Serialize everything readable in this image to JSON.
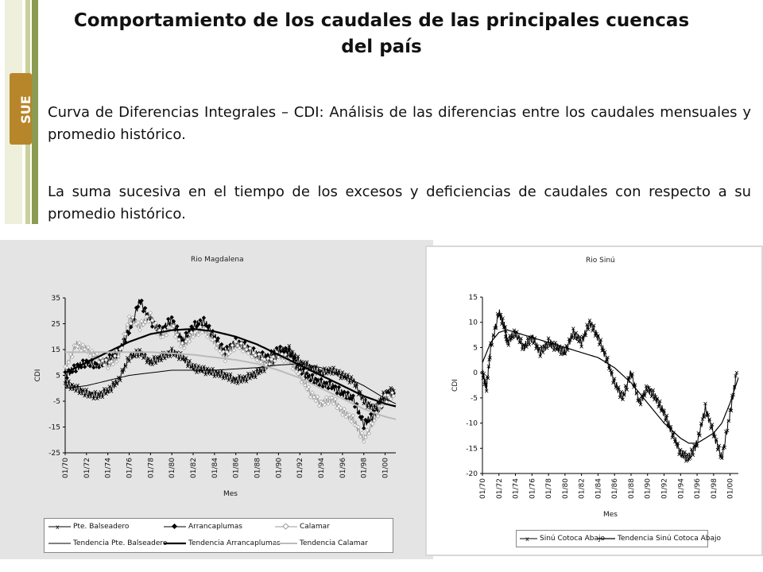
{
  "slide": {
    "title_line1": "Comportamiento de los caudales de las principales cuencas",
    "title_line2": "del país",
    "paragraph1": "Curva de Diferencias Integrales – CDI: Análisis de las diferencias entre los caudales mensuales y promedio histórico.",
    "paragraph2": "La suma sucesiva en el tiempo de los excesos y deficiencias de caudales con respecto a su promedio histórico.",
    "logo_text": "SUE",
    "logo_icon": "sue-logo-icon"
  },
  "chart_data": [
    {
      "type": "line",
      "title": "Rio Magdalena",
      "xlabel": "Mes",
      "ylabel": "CDI",
      "ylim": [
        -25,
        35
      ],
      "yticks": [
        "35",
        "25",
        "15",
        "5",
        "-5",
        "-15",
        "-25"
      ],
      "xlim": [
        1970,
        2001
      ],
      "xticks": [
        "01/70",
        "01/72",
        "01/74",
        "01/76",
        "01/78",
        "01/80",
        "01/82",
        "01/84",
        "01/86",
        "01/88",
        "01/90",
        "01/92",
        "01/94",
        "01/96",
        "01/98",
        "01/00"
      ],
      "grid": false,
      "legend_position": "bottom",
      "series": [
        {
          "name": "Pte. Balseadero",
          "color": "#000000",
          "marker": "x",
          "style": "solid",
          "width": 1,
          "x": [
            1970,
            1971,
            1972,
            1973,
            1974,
            1975,
            1976,
            1977,
            1978,
            1979,
            1980,
            1981,
            1982,
            1983,
            1984,
            1985,
            1986,
            1987,
            1988,
            1989,
            1990,
            1991,
            1992,
            1993,
            1994,
            1995,
            1996,
            1997,
            1998,
            1999,
            2000,
            2000.8
          ],
          "values": [
            2,
            0,
            -2,
            -3,
            -1,
            3,
            12,
            14,
            10,
            12,
            14,
            12,
            8,
            7,
            6,
            5,
            3,
            4,
            6,
            9,
            13,
            15,
            10,
            8,
            6,
            7,
            5,
            3,
            -5,
            -8,
            -2,
            -1
          ]
        },
        {
          "name": "Arrancaplumas",
          "color": "#000000",
          "marker": "diamond",
          "style": "solid",
          "width": 1,
          "x": [
            1970,
            1971,
            1972,
            1973,
            1974,
            1975,
            1976,
            1977,
            1978,
            1979,
            1980,
            1981,
            1982,
            1983,
            1984,
            1985,
            1986,
            1987,
            1988,
            1989,
            1990,
            1991,
            1992,
            1993,
            1994,
            1995,
            1996,
            1997,
            1998,
            1999,
            2000,
            2000.8
          ],
          "values": [
            5,
            8,
            10,
            9,
            11,
            14,
            22,
            34,
            26,
            22,
            27,
            18,
            24,
            26,
            20,
            14,
            18,
            16,
            13,
            12,
            15,
            14,
            7,
            4,
            2,
            1,
            -2,
            -4,
            -14,
            -10,
            -4,
            -2
          ]
        },
        {
          "name": "Calamar",
          "color": "#999999",
          "marker": "diamond-open",
          "style": "solid",
          "width": 1,
          "x": [
            1970,
            1971,
            1972,
            1973,
            1974,
            1975,
            1976,
            1977,
            1978,
            1979,
            1980,
            1981,
            1982,
            1983,
            1984,
            1985,
            1986,
            1987,
            1988,
            1989,
            1990,
            1991,
            1992,
            1993,
            1994,
            1995,
            1996,
            1997,
            1998,
            1999,
            2000,
            2000.8
          ],
          "values": [
            7,
            17,
            15,
            12,
            9,
            12,
            27,
            24,
            28,
            20,
            24,
            16,
            21,
            23,
            18,
            12,
            17,
            15,
            12,
            10,
            13,
            11,
            5,
            -2,
            -6,
            -4,
            -9,
            -12,
            -20,
            -12,
            -4,
            -3
          ]
        },
        {
          "name": "Tendencia Pte. Balseadero",
          "color": "#000000",
          "marker": "none",
          "style": "solid",
          "width": 1,
          "x": [
            1970,
            1972,
            1974,
            1976,
            1978,
            1980,
            1982,
            1984,
            1986,
            1988,
            1990,
            1992,
            1994,
            1996,
            1998,
            2000,
            2001
          ],
          "values": [
            0,
            1,
            3,
            5,
            6,
            7,
            7,
            7,
            7.5,
            8,
            9,
            9.5,
            8,
            5,
            1,
            -4,
            -6
          ]
        },
        {
          "name": "Tendencia Arrancaplumas",
          "color": "#000000",
          "marker": "none",
          "style": "solid",
          "width": 2.2,
          "x": [
            1970,
            1972,
            1974,
            1976,
            1978,
            1980,
            1982,
            1984,
            1986,
            1988,
            1990,
            1992,
            1994,
            1996,
            1998,
            2000,
            2001
          ],
          "values": [
            6,
            10,
            14,
            18,
            21,
            22.5,
            23,
            22,
            20,
            17,
            13,
            9,
            5,
            1,
            -3,
            -6,
            -7
          ]
        },
        {
          "name": "Tendencia Calamar",
          "color": "#bbbbbb",
          "marker": "none",
          "style": "solid",
          "width": 2,
          "x": [
            1970,
            1972,
            1974,
            1976,
            1978,
            1980,
            1982,
            1984,
            1986,
            1988,
            1990,
            1992,
            1994,
            1996,
            1998,
            2000,
            2001
          ],
          "values": [
            14,
            14,
            14,
            14,
            14,
            13.5,
            13,
            12,
            11,
            9.5,
            7,
            4,
            0,
            -4,
            -8,
            -11,
            -12
          ]
        }
      ]
    },
    {
      "type": "line",
      "title": "Rio Sinú",
      "xlabel": "Mes",
      "ylabel": "CDI",
      "ylim": [
        -20,
        15
      ],
      "yticks": [
        "15",
        "10",
        "5",
        "0",
        "-5",
        "-10",
        "-15",
        "-20"
      ],
      "xlim": [
        1970,
        2001
      ],
      "xticks": [
        "01/70",
        "01/72",
        "01/74",
        "01/76",
        "01/78",
        "01/80",
        "01/82",
        "01/84",
        "01/86",
        "01/88",
        "01/90",
        "01/92",
        "01/94",
        "01/96",
        "01/98",
        "01/00"
      ],
      "grid": false,
      "legend_position": "bottom",
      "series": [
        {
          "name": "Sinú Cotoca Abajo",
          "color": "#000000",
          "marker": "x",
          "style": "solid",
          "width": 1,
          "x": [
            1970,
            1970.5,
            1971,
            1972,
            1972.7,
            1973,
            1974,
            1975,
            1976,
            1977,
            1978,
            1979,
            1980,
            1981,
            1982,
            1983,
            1984,
            1985,
            1986,
            1987,
            1988,
            1989,
            1990,
            1991,
            1992,
            1993,
            1994,
            1995,
            1996,
            1997,
            1998,
            1999,
            2000,
            2000.8
          ],
          "values": [
            0,
            -3,
            5,
            12,
            9,
            6,
            8,
            5,
            7,
            4,
            6,
            5,
            4,
            8,
            6,
            10,
            7,
            3,
            -2,
            -5,
            0,
            -6,
            -3,
            -5,
            -8,
            -12,
            -16,
            -17,
            -14,
            -7,
            -12,
            -17,
            -8,
            0
          ]
        },
        {
          "name": "Tendencia Sinú Cotoca Abajo",
          "color": "#000000",
          "marker": "none",
          "style": "solid",
          "width": 1.2,
          "x": [
            1970,
            1971,
            1972,
            1973,
            1974,
            1976,
            1978,
            1980,
            1982,
            1984,
            1986,
            1988,
            1990,
            1992,
            1994,
            1995,
            1996,
            1997,
            1998,
            1999,
            2000,
            2001
          ],
          "values": [
            2,
            6,
            8,
            8.5,
            8,
            7,
            6,
            5,
            4,
            3,
            1,
            -2,
            -6,
            -10,
            -13,
            -14,
            -14,
            -13,
            -12,
            -10,
            -6,
            -1
          ]
        }
      ]
    }
  ]
}
